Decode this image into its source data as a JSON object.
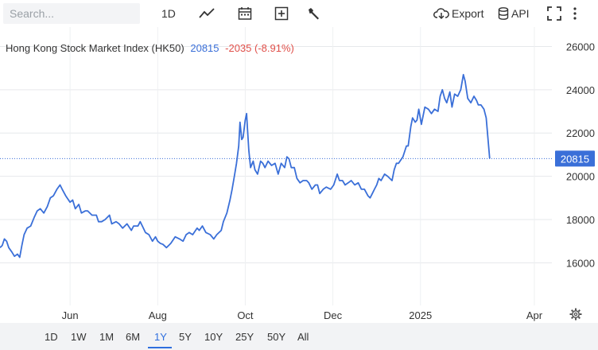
{
  "toolbar": {
    "search_placeholder": "Search...",
    "interval_label": "1D",
    "export_label": "Export",
    "api_label": "API"
  },
  "legend": {
    "name": "Hong Kong Stock Market Index (HK50)",
    "last": "20815",
    "change": "-2035 (-8.91%)"
  },
  "price_tag": "20815",
  "ranges": [
    "1D",
    "1W",
    "1M",
    "6M",
    "1Y",
    "5Y",
    "10Y",
    "25Y",
    "50Y",
    "All"
  ],
  "active_range": "1Y",
  "colors": {
    "line": "#3a6fd8",
    "negative": "#e0504a",
    "accent": "#2f6fde"
  },
  "chart_data": {
    "type": "line",
    "title": "Hong Kong Stock Market Index (HK50)",
    "y_ticks": [
      "16000",
      "18000",
      "20000",
      "22000",
      "24000",
      "26000"
    ],
    "ylim": [
      14100,
      26900
    ],
    "y_axis_side": "right",
    "grid": true,
    "x_tick_labels": [
      {
        "label": "Jun",
        "x": 1.6
      },
      {
        "label": "Aug",
        "x": 3.6
      },
      {
        "label": "Oct",
        "x": 5.6
      },
      {
        "label": "Dec",
        "x": 7.6
      },
      {
        "label": "2025",
        "x": 9.6
      },
      {
        "label": "Apr",
        "x": 12.2
      }
    ],
    "xlim": [
      0,
      12.6
    ],
    "last_value": 20815,
    "series": [
      {
        "values": [
          [
            0.0,
            16700
          ],
          [
            0.05,
            16800
          ],
          [
            0.1,
            17100
          ],
          [
            0.15,
            17000
          ],
          [
            0.2,
            16700
          ],
          [
            0.27,
            16500
          ],
          [
            0.33,
            16300
          ],
          [
            0.4,
            16400
          ],
          [
            0.45,
            16250
          ],
          [
            0.5,
            16800
          ],
          [
            0.55,
            17300
          ],
          [
            0.62,
            17600
          ],
          [
            0.7,
            17700
          ],
          [
            0.78,
            18100
          ],
          [
            0.85,
            18400
          ],
          [
            0.92,
            18500
          ],
          [
            1.0,
            18300
          ],
          [
            1.08,
            18600
          ],
          [
            1.15,
            19000
          ],
          [
            1.22,
            19100
          ],
          [
            1.3,
            19400
          ],
          [
            1.37,
            19600
          ],
          [
            1.42,
            19400
          ],
          [
            1.5,
            19100
          ],
          [
            1.6,
            18800
          ],
          [
            1.66,
            18900
          ],
          [
            1.72,
            18500
          ],
          [
            1.8,
            18700
          ],
          [
            1.86,
            18300
          ],
          [
            1.95,
            18400
          ],
          [
            2.0,
            18400
          ],
          [
            2.1,
            18200
          ],
          [
            2.2,
            18200
          ],
          [
            2.25,
            17900
          ],
          [
            2.32,
            17900
          ],
          [
            2.4,
            18000
          ],
          [
            2.5,
            18200
          ],
          [
            2.55,
            17800
          ],
          [
            2.65,
            17900
          ],
          [
            2.72,
            17800
          ],
          [
            2.8,
            17600
          ],
          [
            2.9,
            17800
          ],
          [
            3.0,
            17500
          ],
          [
            3.05,
            17700
          ],
          [
            3.15,
            17700
          ],
          [
            3.2,
            17900
          ],
          [
            3.25,
            17700
          ],
          [
            3.32,
            17400
          ],
          [
            3.4,
            17300
          ],
          [
            3.48,
            17000
          ],
          [
            3.55,
            17200
          ],
          [
            3.6,
            17000
          ],
          [
            3.66,
            16900
          ],
          [
            3.72,
            16850
          ],
          [
            3.8,
            16700
          ],
          [
            3.85,
            16800
          ],
          [
            3.9,
            16900
          ],
          [
            4.0,
            17200
          ],
          [
            4.1,
            17100
          ],
          [
            4.18,
            17000
          ],
          [
            4.25,
            17300
          ],
          [
            4.32,
            17400
          ],
          [
            4.4,
            17300
          ],
          [
            4.5,
            17600
          ],
          [
            4.55,
            17500
          ],
          [
            4.62,
            17700
          ],
          [
            4.7,
            17400
          ],
          [
            4.8,
            17300
          ],
          [
            4.88,
            17100
          ],
          [
            4.95,
            17300
          ],
          [
            5.05,
            17500
          ],
          [
            5.1,
            17900
          ],
          [
            5.18,
            18300
          ],
          [
            5.25,
            18900
          ],
          [
            5.3,
            19400
          ],
          [
            5.35,
            20000
          ],
          [
            5.4,
            20600
          ],
          [
            5.45,
            21400
          ],
          [
            5.48,
            22500
          ],
          [
            5.52,
            21700
          ],
          [
            5.55,
            21800
          ],
          [
            5.6,
            22600
          ],
          [
            5.63,
            22900
          ],
          [
            5.65,
            22200
          ],
          [
            5.68,
            21200
          ],
          [
            5.72,
            20400
          ],
          [
            5.78,
            20700
          ],
          [
            5.82,
            20300
          ],
          [
            5.88,
            20100
          ],
          [
            5.95,
            20700
          ],
          [
            6.0,
            20600
          ],
          [
            6.05,
            20400
          ],
          [
            6.12,
            20700
          ],
          [
            6.2,
            20500
          ],
          [
            6.28,
            20600
          ],
          [
            6.35,
            20100
          ],
          [
            6.42,
            20600
          ],
          [
            6.5,
            20400
          ],
          [
            6.55,
            20900
          ],
          [
            6.6,
            20800
          ],
          [
            6.65,
            20400
          ],
          [
            6.72,
            20400
          ],
          [
            6.78,
            19900
          ],
          [
            6.85,
            19700
          ],
          [
            6.92,
            19800
          ],
          [
            7.0,
            19800
          ],
          [
            7.05,
            19700
          ],
          [
            7.12,
            19400
          ],
          [
            7.2,
            19600
          ],
          [
            7.25,
            19600
          ],
          [
            7.3,
            19200
          ],
          [
            7.38,
            19400
          ],
          [
            7.45,
            19500
          ],
          [
            7.55,
            19400
          ],
          [
            7.62,
            19600
          ],
          [
            7.7,
            20100
          ],
          [
            7.75,
            19800
          ],
          [
            7.82,
            19800
          ],
          [
            7.88,
            19600
          ],
          [
            7.95,
            19700
          ],
          [
            8.02,
            19800
          ],
          [
            8.1,
            19600
          ],
          [
            8.18,
            19700
          ],
          [
            8.25,
            19400
          ],
          [
            8.32,
            19400
          ],
          [
            8.4,
            19100
          ],
          [
            8.45,
            19000
          ],
          [
            8.5,
            19200
          ],
          [
            8.55,
            19400
          ],
          [
            8.6,
            19600
          ],
          [
            8.65,
            19900
          ],
          [
            8.7,
            19800
          ],
          [
            8.78,
            20100
          ],
          [
            8.85,
            20000
          ],
          [
            8.95,
            19800
          ],
          [
            9.0,
            20300
          ],
          [
            9.05,
            20600
          ],
          [
            9.1,
            20600
          ],
          [
            9.2,
            20900
          ],
          [
            9.28,
            21400
          ],
          [
            9.32,
            21400
          ],
          [
            9.38,
            22300
          ],
          [
            9.42,
            22700
          ],
          [
            9.48,
            22500
          ],
          [
            9.52,
            22600
          ],
          [
            9.56,
            23100
          ],
          [
            9.62,
            22400
          ],
          [
            9.7,
            23200
          ],
          [
            9.78,
            23100
          ],
          [
            9.85,
            22900
          ],
          [
            9.92,
            23100
          ],
          [
            10.0,
            23000
          ],
          [
            10.05,
            23700
          ],
          [
            10.1,
            24000
          ],
          [
            10.15,
            23600
          ],
          [
            10.2,
            23400
          ],
          [
            10.27,
            23900
          ],
          [
            10.32,
            23200
          ],
          [
            10.38,
            23800
          ],
          [
            10.45,
            23700
          ],
          [
            10.52,
            24000
          ],
          [
            10.58,
            24700
          ],
          [
            10.62,
            24400
          ],
          [
            10.68,
            23600
          ],
          [
            10.75,
            23400
          ],
          [
            10.82,
            23700
          ],
          [
            10.88,
            23500
          ],
          [
            10.92,
            23300
          ],
          [
            10.98,
            23300
          ],
          [
            11.05,
            23100
          ],
          [
            11.1,
            22700
          ],
          [
            11.18,
            20815
          ]
        ]
      }
    ]
  }
}
